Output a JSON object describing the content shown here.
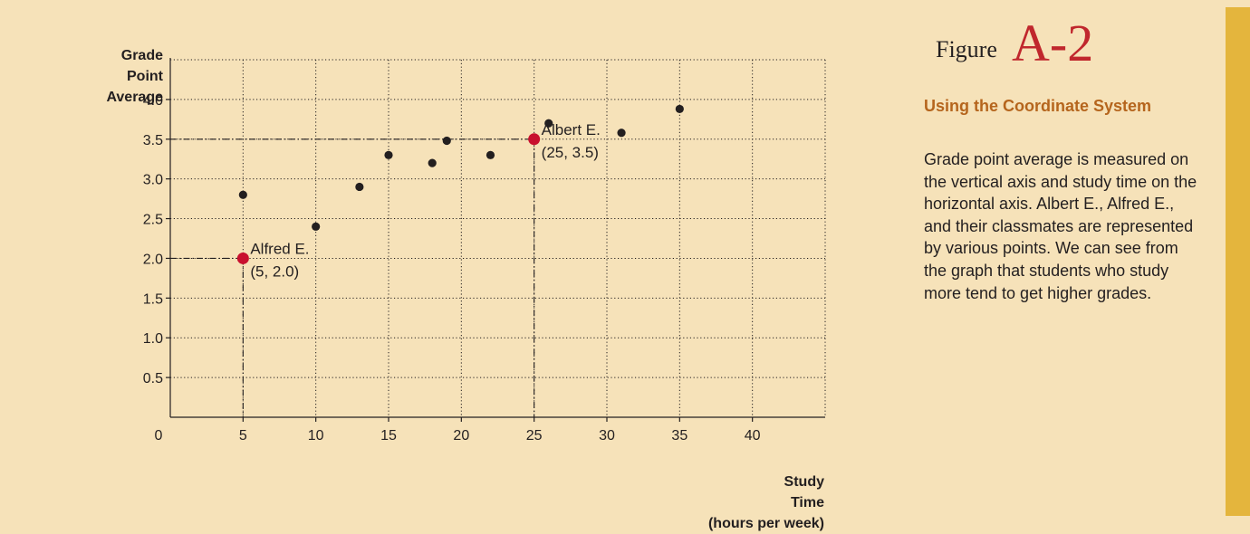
{
  "figure": {
    "label": "Figure",
    "number": "A-2",
    "caption_title": "Using the Coordinate System",
    "caption_body": "Grade point average is measured on the vertical axis and study time on the horizontal axis. Albert E., Alfred E., and their classmates are represented by various points. We can see from the graph that students who study more tend to get higher grades."
  },
  "colors": {
    "background": "#f6e2b9",
    "accent_bar": "#e4b53d",
    "highlight_point": "#c8102e",
    "caption_title": "#b5651d",
    "figure_number": "#c0272d"
  },
  "chart_data": {
    "type": "scatter",
    "ylabel_lines": [
      "Grade",
      "Point",
      "Average"
    ],
    "xlabel_lines": [
      "Study",
      "Time",
      "(hours per week)"
    ],
    "xlim": [
      0,
      45
    ],
    "ylim": [
      0,
      4.5
    ],
    "x_ticks": [
      0,
      5,
      10,
      15,
      20,
      25,
      30,
      35,
      40
    ],
    "x_tick_labels": [
      "0",
      "5",
      "10",
      "15",
      "20",
      "25",
      "30",
      "35",
      "40"
    ],
    "y_ticks": [
      0.5,
      1.0,
      1.5,
      2.0,
      2.5,
      3.0,
      3.5,
      4.0
    ],
    "y_tick_labels": [
      "0.5",
      "1.0",
      "1.5",
      "2.0",
      "2.5",
      "3.0",
      "3.5",
      "4.0"
    ],
    "grid": true,
    "points": [
      {
        "x": 5,
        "y": 2.8
      },
      {
        "x": 10,
        "y": 2.4
      },
      {
        "x": 13,
        "y": 2.9
      },
      {
        "x": 15,
        "y": 3.3
      },
      {
        "x": 18,
        "y": 3.2
      },
      {
        "x": 19,
        "y": 3.48
      },
      {
        "x": 22,
        "y": 3.3
      },
      {
        "x": 26,
        "y": 3.7
      },
      {
        "x": 31,
        "y": 3.58
      },
      {
        "x": 35,
        "y": 3.88
      }
    ],
    "highlighted": [
      {
        "x": 5,
        "y": 2.0,
        "name": "Alfred E.",
        "coord_label": "(5, 2.0)"
      },
      {
        "x": 25,
        "y": 3.5,
        "name": "Albert E.",
        "coord_label": "(25, 3.5)"
      }
    ]
  }
}
